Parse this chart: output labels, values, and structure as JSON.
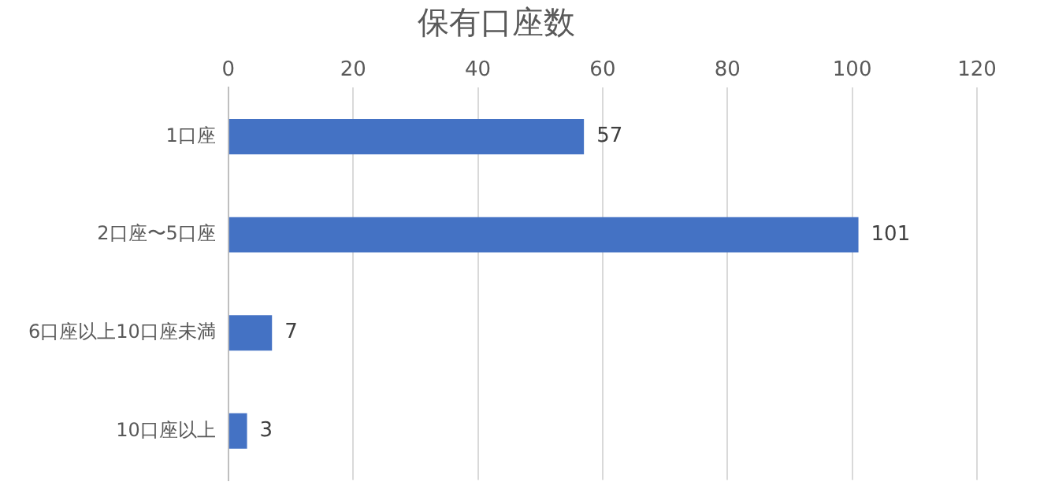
{
  "chart_data": {
    "type": "bar",
    "orientation": "horizontal",
    "title": "保有口座数",
    "categories": [
      "1口座",
      "2口座〜5口座",
      "6口座以上10口座未満",
      "10口座以上"
    ],
    "values": [
      57,
      101,
      7,
      3
    ],
    "color": "#4472c4",
    "xlim": [
      0,
      120
    ],
    "xticks": [
      0,
      20,
      40,
      60,
      80,
      100,
      120
    ],
    "grid": "x",
    "data_labels": true,
    "legend": false
  }
}
